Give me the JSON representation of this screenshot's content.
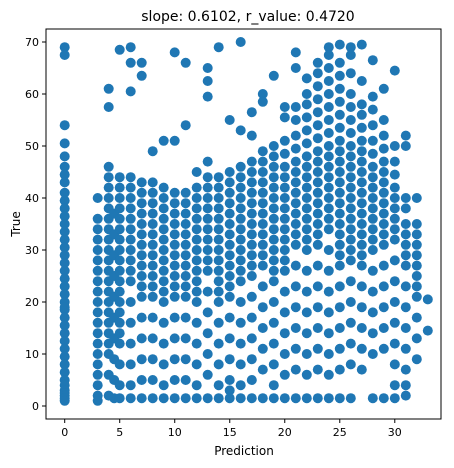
{
  "chart_data": {
    "type": "scatter",
    "title": "slope: 0.6102, r_value: 0.4720",
    "xlabel": "Prediction",
    "ylabel": "True",
    "xlim": [
      -1.7,
      34.2
    ],
    "ylim": [
      -2.5,
      72.5
    ],
    "xticks": [
      0,
      5,
      10,
      15,
      20,
      25,
      30
    ],
    "yticks": [
      0,
      10,
      20,
      30,
      40,
      50,
      60,
      70
    ],
    "grid": false,
    "marker_color": "#1f77b4",
    "series": [
      {
        "x": [
          0,
          0,
          0,
          0,
          0,
          0,
          0,
          0,
          0,
          0,
          0,
          0,
          0,
          0,
          0,
          0,
          0,
          0,
          0,
          0,
          0,
          0,
          0,
          0,
          0,
          0,
          0,
          0,
          0,
          0,
          0,
          0,
          0,
          0,
          0,
          0,
          0,
          0,
          0,
          0,
          3,
          3,
          3,
          3,
          3,
          3,
          3,
          3,
          3,
          3,
          3,
          3,
          3,
          3,
          3,
          3,
          3,
          3,
          3,
          3,
          4,
          4,
          4,
          4,
          4,
          4,
          4,
          4,
          4,
          4,
          4,
          4,
          4,
          4,
          4,
          4,
          4,
          4,
          4,
          4,
          4,
          4,
          4,
          4.5,
          4.5,
          4.5,
          4.5,
          4.5,
          4.5,
          4.5,
          4.5,
          4.5,
          4.5,
          5,
          5,
          5,
          5,
          5,
          5,
          5,
          5,
          5,
          5,
          5,
          5,
          5,
          5,
          5,
          5,
          5,
          5,
          5,
          5,
          5,
          6,
          6,
          6,
          6,
          6,
          6,
          6,
          6,
          6,
          6,
          6,
          6,
          6,
          6,
          6,
          6,
          6,
          6,
          6,
          6,
          7,
          7,
          7,
          7,
          7,
          7,
          7,
          7,
          7,
          7,
          7,
          7,
          7,
          7,
          7,
          7,
          7,
          7,
          7,
          8,
          8,
          8,
          8,
          8,
          8,
          8,
          8,
          8,
          8,
          8,
          8,
          8,
          8,
          8,
          8,
          8,
          8,
          9,
          9,
          9,
          9,
          9,
          9,
          9,
          9,
          9,
          9,
          9,
          9,
          9,
          9,
          9,
          9,
          9,
          9,
          10,
          10,
          10,
          10,
          10,
          10,
          10,
          10,
          10,
          10,
          10,
          10,
          10,
          10,
          10,
          10,
          10,
          10,
          11,
          11,
          11,
          11,
          11,
          11,
          11,
          11,
          11,
          11,
          11,
          11,
          11,
          11,
          11,
          11,
          11,
          11,
          12,
          12,
          12,
          12,
          12,
          12,
          12,
          12,
          12,
          12,
          12,
          12,
          12,
          12,
          12,
          12,
          12,
          12,
          13,
          13,
          13,
          13,
          13,
          13,
          13,
          13,
          13,
          13,
          13,
          13,
          13,
          13,
          13,
          13,
          13,
          13,
          13,
          13,
          14,
          14,
          14,
          14,
          14,
          14,
          14,
          14,
          14,
          14,
          14,
          14,
          14,
          14,
          14,
          14,
          14,
          14,
          14,
          15,
          15,
          15,
          15,
          15,
          15,
          15,
          15,
          15,
          15,
          15,
          15,
          15,
          15,
          15,
          15,
          15,
          15,
          15,
          15,
          16,
          16,
          16,
          16,
          16,
          16,
          16,
          16,
          16,
          16,
          16,
          16,
          16,
          16,
          16,
          16,
          16,
          16,
          16,
          16,
          17,
          17,
          17,
          17,
          17,
          17,
          17,
          17,
          17,
          17,
          17,
          17,
          17,
          17,
          17,
          17,
          17,
          17,
          17,
          17,
          18,
          18,
          18,
          18,
          18,
          18,
          18,
          18,
          18,
          18,
          18,
          18,
          18,
          18,
          18,
          18,
          18,
          18,
          18,
          18,
          19,
          19,
          19,
          19,
          19,
          19,
          19,
          19,
          19,
          19,
          19,
          19,
          19,
          19,
          19,
          19,
          19,
          19,
          19,
          19,
          19,
          20,
          20,
          20,
          20,
          20,
          20,
          20,
          20,
          20,
          20,
          20,
          20,
          20,
          20,
          20,
          20,
          20,
          20,
          20,
          20,
          20,
          21,
          21,
          21,
          21,
          21,
          21,
          21,
          21,
          21,
          21,
          21,
          21,
          21,
          21,
          21,
          21,
          21,
          21,
          21,
          21,
          21,
          21,
          22,
          22,
          22,
          22,
          22,
          22,
          22,
          22,
          22,
          22,
          22,
          22,
          22,
          22,
          22,
          22,
          22,
          22,
          22,
          22,
          22,
          22,
          22,
          23,
          23,
          23,
          23,
          23,
          23,
          23,
          23,
          23,
          23,
          23,
          23,
          23,
          23,
          23,
          23,
          23,
          23,
          23,
          23,
          23,
          23,
          23,
          23,
          24,
          24,
          24,
          24,
          24,
          24,
          24,
          24,
          24,
          24,
          24,
          24,
          24,
          24,
          24,
          24,
          24,
          24,
          24,
          24,
          24,
          24,
          24,
          24,
          24,
          25,
          25,
          25,
          25,
          25,
          25,
          25,
          25,
          25,
          25,
          25,
          25,
          25,
          25,
          25,
          25,
          25,
          25,
          25,
          25,
          25,
          25,
          25,
          25,
          25,
          25,
          26,
          26,
          26,
          26,
          26,
          26,
          26,
          26,
          26,
          26,
          26,
          26,
          26,
          26,
          26,
          26,
          26,
          26,
          26,
          26,
          26,
          26,
          26,
          26,
          26,
          27,
          27,
          27,
          27,
          27,
          27,
          27,
          27,
          27,
          27,
          27,
          27,
          27,
          27,
          27,
          27,
          27,
          27,
          27,
          27,
          27,
          27,
          27,
          28,
          28,
          28,
          28,
          28,
          28,
          28,
          28,
          28,
          28,
          28,
          28,
          28,
          28,
          28,
          28,
          28,
          28,
          28,
          28,
          28,
          29,
          29,
          29,
          29,
          29,
          29,
          29,
          29,
          29,
          29,
          29,
          29,
          29,
          29,
          29,
          29,
          29,
          29,
          29,
          30,
          30,
          30,
          30,
          30,
          30,
          30,
          30,
          30,
          30,
          30,
          30,
          30,
          30,
          30,
          30,
          30,
          30,
          31,
          31,
          31,
          31,
          31,
          31,
          31,
          31,
          31,
          31,
          31,
          31,
          31,
          31,
          31,
          31,
          32,
          32,
          32,
          32,
          32,
          32,
          32,
          32,
          32,
          32,
          32,
          32,
          33,
          33
        ],
        "y": [
          69,
          67.5,
          54,
          50.5,
          48,
          46,
          44.5,
          43,
          41,
          39.5,
          38,
          36.5,
          35,
          33.5,
          32,
          30.5,
          29,
          27.5,
          26,
          24.5,
          23,
          21.5,
          20,
          18.5,
          17,
          15.5,
          14,
          12.5,
          11,
          9.5,
          8,
          6.5,
          5,
          4,
          3,
          2.5,
          2,
          1.5,
          1,
          19,
          40,
          36,
          34,
          32,
          30,
          28,
          26,
          24,
          22,
          20,
          18,
          16,
          14,
          12,
          10,
          8,
          6,
          4,
          2,
          1,
          61,
          57.5,
          46,
          44,
          42,
          40,
          38,
          36,
          34,
          32,
          30,
          28,
          26,
          24,
          22,
          20,
          18,
          16,
          14,
          12,
          10,
          6,
          2,
          37,
          33,
          29,
          25,
          21,
          17,
          13,
          9,
          5,
          1.5,
          68.5,
          44,
          42,
          40,
          38,
          36,
          34,
          32,
          30,
          28,
          26,
          24,
          22,
          20,
          18,
          16,
          14,
          12,
          8,
          4,
          1.5,
          69,
          66,
          60.5,
          44,
          42,
          40,
          38,
          36,
          34,
          32,
          30,
          28,
          26,
          24,
          20,
          16,
          12,
          8,
          4,
          1.5,
          66,
          63.5,
          43,
          41,
          39,
          37,
          35,
          33,
          31,
          29,
          27,
          25,
          23,
          21,
          17,
          13,
          9,
          5,
          1.5,
          49,
          43,
          41,
          39,
          37,
          35,
          33,
          31,
          29,
          27,
          25,
          23,
          21,
          17,
          13,
          9,
          5,
          1.5,
          51,
          42,
          40,
          38,
          36,
          34,
          32,
          30,
          28,
          26,
          24,
          22,
          20,
          16,
          12,
          8,
          4,
          1.5,
          68,
          51,
          41,
          39,
          37,
          35,
          33,
          31,
          29,
          27,
          25,
          23,
          21,
          17,
          13,
          9,
          5,
          1.5,
          66,
          54,
          41,
          39,
          37,
          35,
          33,
          31,
          29,
          27,
          25,
          23,
          21,
          17,
          13,
          9,
          5,
          1.5,
          45,
          42,
          40,
          38,
          36,
          34,
          32,
          30,
          28,
          26,
          24,
          22,
          20,
          16,
          12,
          8,
          4,
          1.5,
          65,
          62.5,
          59.5,
          47,
          44,
          42,
          40,
          38,
          36,
          34,
          32,
          30,
          28,
          26,
          22,
          18,
          14,
          10,
          6,
          1.5,
          69,
          44,
          42,
          40,
          38,
          36,
          34,
          32,
          30,
          28,
          26,
          24,
          22,
          20,
          16,
          12,
          8,
          4,
          1.5,
          55,
          45,
          43,
          41,
          39,
          37,
          35,
          33,
          31,
          29,
          27,
          25,
          23,
          21,
          17,
          13,
          9,
          5,
          3,
          1.5,
          70,
          53,
          46,
          44,
          42,
          40,
          38,
          36,
          34,
          32,
          30,
          28,
          26,
          24,
          20,
          16,
          12,
          8,
          4,
          1.5,
          56.5,
          52,
          47,
          45,
          43,
          41,
          39,
          37,
          35,
          33,
          31,
          29,
          27,
          25,
          21,
          17,
          13,
          9,
          5,
          1.5,
          60,
          58.5,
          49,
          47,
          45,
          43,
          41,
          39,
          37,
          35,
          33,
          31,
          29,
          27,
          23,
          19,
          15,
          11,
          7,
          1.5,
          63.5,
          50,
          48,
          46,
          44,
          42,
          40,
          38,
          36,
          34,
          32,
          30,
          28,
          26,
          24,
          20,
          16,
          12,
          8,
          4,
          1.5,
          57.5,
          55.5,
          51,
          48.5,
          46,
          44,
          42,
          40,
          38,
          36,
          34,
          32,
          30,
          28,
          26,
          22,
          18,
          14,
          10,
          6,
          1.5,
          68,
          65,
          57.5,
          55,
          52,
          49.5,
          47,
          45,
          43,
          41,
          39,
          37,
          35,
          33,
          31,
          27,
          23,
          19,
          15,
          11,
          7,
          1.5,
          63,
          60,
          58,
          55.5,
          53,
          50.5,
          48,
          46,
          44,
          42,
          40,
          38,
          36,
          34,
          32,
          30,
          26,
          22,
          18,
          14,
          10,
          6,
          1.5,
          66,
          64,
          61.5,
          59,
          56.5,
          54,
          51.5,
          49,
          47,
          45,
          43,
          41,
          39,
          37,
          35,
          33,
          31,
          27,
          23,
          19,
          15,
          11,
          7,
          1.5,
          69,
          67.5,
          65,
          62.5,
          60,
          57.5,
          55,
          52.5,
          50,
          48,
          46,
          44,
          42,
          40,
          38,
          36,
          34,
          30,
          26,
          22,
          18,
          14,
          10,
          6,
          1.5,
          69.5,
          66,
          63.5,
          61,
          58.5,
          56,
          53.5,
          51,
          49,
          47,
          45,
          43,
          41,
          39,
          37,
          35,
          33,
          31,
          29,
          27,
          23,
          19,
          15,
          11,
          7,
          1.5,
          69,
          67.5,
          64,
          60,
          57.5,
          55,
          52.5,
          50,
          48,
          46,
          44,
          42,
          40,
          38,
          36,
          34,
          32,
          30,
          28,
          24,
          20,
          16,
          12,
          8,
          1.5,
          69.5,
          62.5,
          58,
          56,
          53.5,
          51,
          49,
          47,
          45,
          43,
          41,
          39,
          37,
          35,
          33,
          31,
          29,
          27,
          23,
          19,
          15,
          11,
          7,
          66.5,
          59.5,
          57,
          54,
          51,
          48.5,
          46,
          44,
          42,
          40,
          38,
          36,
          34,
          32,
          30,
          26,
          22,
          18,
          14,
          10,
          1.5,
          61,
          55,
          52,
          49.5,
          47,
          45,
          43,
          41,
          39,
          37,
          35,
          33,
          31,
          27,
          23,
          19,
          15,
          11,
          1.5,
          64.5,
          50,
          47,
          44.5,
          42,
          40,
          38,
          36,
          34,
          32,
          28,
          24,
          20,
          16,
          12,
          8,
          4,
          1.5,
          52,
          50,
          40,
          38,
          35,
          33,
          31,
          29,
          27,
          23,
          19,
          15,
          11,
          7,
          4,
          2,
          40,
          35,
          33,
          31,
          29,
          27,
          25,
          23,
          21,
          17,
          13,
          9,
          20.5,
          14.5
        ]
      }
    ]
  }
}
